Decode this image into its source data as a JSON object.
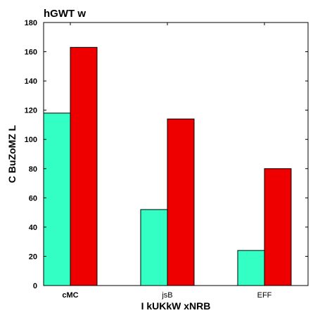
{
  "chart_data": {
    "type": "bar",
    "title": "hGWT w",
    "xlabel": "I kUKkW xNRB",
    "ylabel": "C BuZoMZ L",
    "categories": [
      "cMC",
      "jsB",
      "EFF"
    ],
    "series": [
      {
        "values": [
          118,
          52,
          24
        ],
        "color": "#33ffc4"
      },
      {
        "values": [
          163,
          114,
          80
        ],
        "color": "#ee0000"
      }
    ],
    "ylim": [
      0,
      180
    ],
    "yticks": [
      0,
      20,
      40,
      60,
      80,
      100,
      120,
      140,
      160,
      180
    ],
    "ytick_labels": [
      "0",
      "20",
      "40",
      "60",
      "80",
      "100",
      "120",
      "140",
      "160",
      "180"
    ],
    "grid": false
  }
}
